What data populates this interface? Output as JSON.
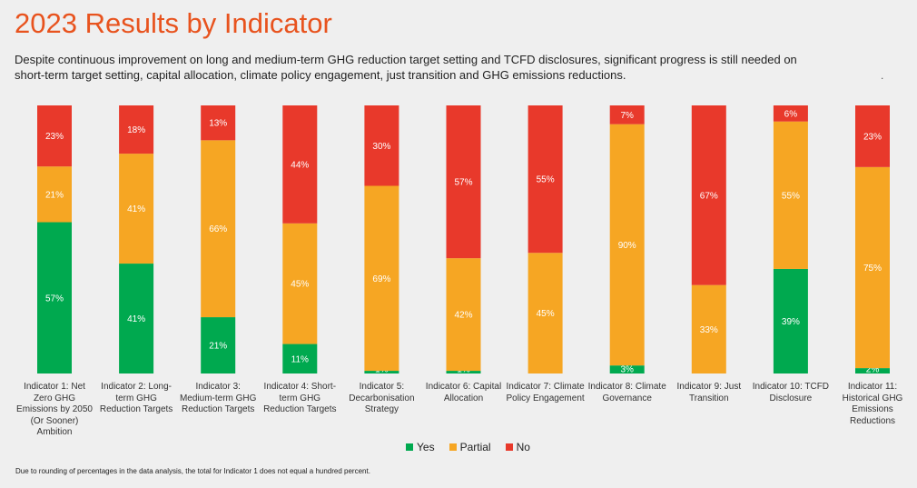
{
  "title": "2023 Results by Indicator",
  "subtitle": "Despite continuous improvement on long and medium-term GHG reduction target setting and TCFD disclosures, significant progress is still needed on short-term target setting, capital allocation, climate policy engagement, just transition and GHG emissions reductions.",
  "corner_mark": ".",
  "footnote": "Due to rounding of percentages in the data analysis, the total for Indicator 1 does not equal a hundred percent.",
  "colors": {
    "Yes": "#00a94f",
    "Partial": "#f6a623",
    "No": "#e8392b",
    "title": "#e8531e"
  },
  "chart_data": {
    "type": "bar",
    "stacked": true,
    "title": "2023 Results by Indicator",
    "categories": [
      "Indicator 1: Net Zero GHG Emissions by 2050 (Or Sooner) Ambition",
      "Indicator 2: Long-term GHG Reduction Targets",
      "Indicator 3: Medium-term GHG Reduction Targets",
      "Indicator 4: Short-term GHG Reduction Targets",
      "Indicator 5: Decarbonisation Strategy",
      "Indicator 6: Capital Allocation",
      "Indicator 7: Climate Policy Engagement",
      "Indicator 8: Climate Governance",
      "Indicator 9: Just Transition",
      "Indicator 10: TCFD Disclosure",
      "Indicator 11: Historical GHG Emissions Reductions"
    ],
    "series": [
      {
        "name": "Yes",
        "values": [
          57,
          41,
          21,
          11,
          1,
          1,
          0,
          3,
          0,
          39,
          2
        ]
      },
      {
        "name": "Partial",
        "values": [
          21,
          41,
          66,
          45,
          69,
          42,
          45,
          90,
          33,
          55,
          75
        ]
      },
      {
        "name": "No",
        "values": [
          23,
          18,
          13,
          44,
          30,
          57,
          55,
          7,
          67,
          6,
          23
        ]
      }
    ],
    "legend": [
      "Yes",
      "Partial",
      "No"
    ],
    "legend_position": "bottom",
    "unit": "%",
    "ylim": [
      0,
      100
    ]
  }
}
